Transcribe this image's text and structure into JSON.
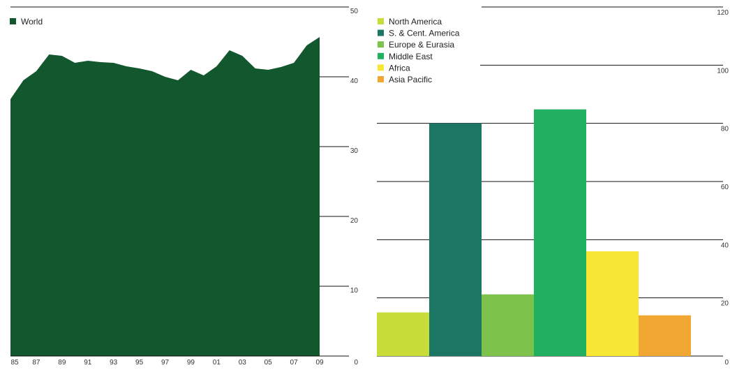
{
  "chart_data": [
    {
      "type": "area",
      "x": [
        "85",
        "86",
        "87",
        "88",
        "89",
        "90",
        "91",
        "92",
        "93",
        "94",
        "95",
        "96",
        "97",
        "98",
        "99",
        "00",
        "01",
        "02",
        "03",
        "04",
        "05",
        "06",
        "07",
        "08",
        "09"
      ],
      "x_tick_labels": [
        "85",
        "87",
        "89",
        "91",
        "93",
        "95",
        "97",
        "99",
        "01",
        "03",
        "05",
        "07",
        "09"
      ],
      "series": [
        {
          "name": "World",
          "values": [
            36.8,
            39.5,
            40.8,
            43.2,
            43.0,
            42.0,
            42.3,
            42.1,
            42.0,
            41.5,
            41.2,
            40.8,
            40.0,
            39.5,
            41.0,
            40.2,
            41.5,
            43.8,
            43.0,
            41.2,
            41.0,
            41.4,
            42.0,
            44.5,
            45.7
          ]
        }
      ],
      "color": "#12572d",
      "ylim": [
        0,
        50
      ],
      "y_ticks": [
        "10",
        "20",
        "30",
        "40",
        "50"
      ],
      "y_axis_side": "right",
      "legend_position": "top-left",
      "grid": "right-side tick lines"
    },
    {
      "type": "bar",
      "categories": [
        "North America",
        "S. & Cent. America",
        "Europe & Eurasia",
        "Middle East",
        "Africa",
        "Asia Pacific"
      ],
      "values": [
        15.0,
        80.0,
        21.2,
        84.8,
        36.0,
        14.0
      ],
      "colors": [
        "#c9dd3a",
        "#1c7664",
        "#7cc24b",
        "#21b061",
        "#f7e633",
        "#f1a833"
      ],
      "ylim": [
        0,
        120
      ],
      "y_ticks": [
        "0",
        "20",
        "40",
        "60",
        "80",
        "100",
        "120"
      ],
      "y_axis_side": "right",
      "legend_position": "top-left",
      "grid": true
    }
  ]
}
